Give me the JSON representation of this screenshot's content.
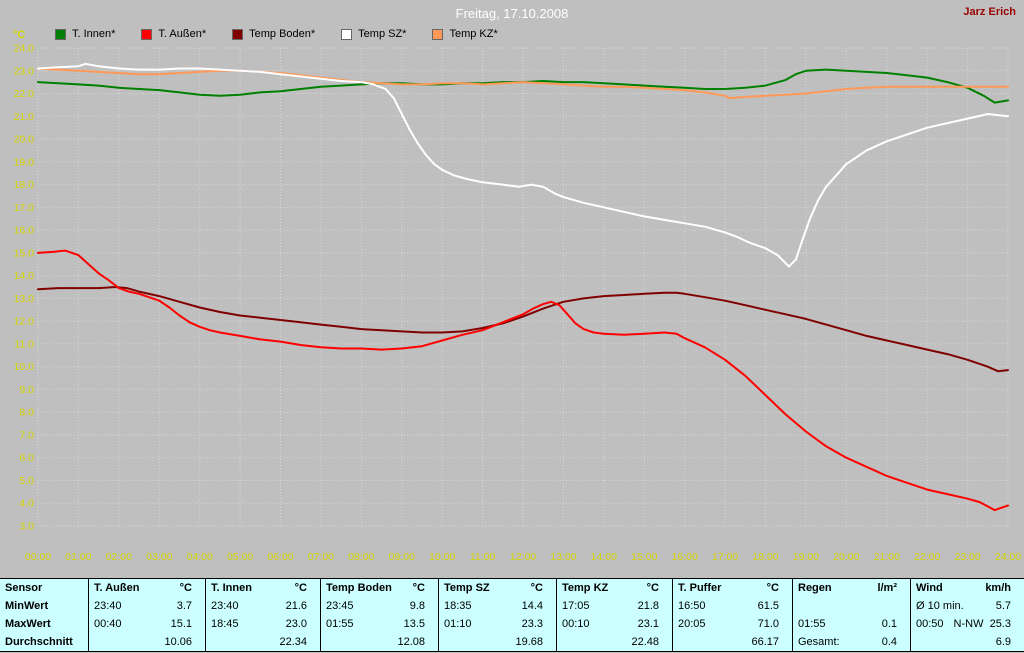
{
  "header": {
    "title": "Freitag, 17.10.2008",
    "watermark": "Jarz Erich"
  },
  "colors": {
    "background": "#bfbfbf",
    "axis_text": "#d4d400",
    "grid": "#d8d8d8",
    "title_text": "#ffffff",
    "watermark_text": "#990000",
    "table_background": "#ccffff",
    "table_border": "#000000"
  },
  "chart_data": {
    "type": "line",
    "title": "Freitag, 17.10.2008",
    "ylabel": "°C",
    "ylim": [
      3.0,
      24.0
    ],
    "y_tick_step": 1.0,
    "xlim": [
      0,
      24
    ],
    "grid": true,
    "legend_position": "top-left",
    "x_ticks": [
      "00:00",
      "01:00",
      "02:00",
      "03:00",
      "04:00",
      "05:00",
      "06:00",
      "07:00",
      "08:00",
      "09:00",
      "10:00",
      "11:00",
      "12:00",
      "13:00",
      "14:00",
      "15:00",
      "16:00",
      "17:00",
      "18:00",
      "19:00",
      "20:00",
      "21:00",
      "22:00",
      "23:00",
      "24:00"
    ],
    "series": [
      {
        "name": "T. Innen*",
        "color": "#008000",
        "points": [
          [
            0,
            22.5
          ],
          [
            1,
            22.4
          ],
          [
            1.5,
            22.35
          ],
          [
            2,
            22.25
          ],
          [
            2.5,
            22.2
          ],
          [
            3,
            22.15
          ],
          [
            3.5,
            22.05
          ],
          [
            4,
            21.95
          ],
          [
            4.5,
            21.9
          ],
          [
            5,
            21.95
          ],
          [
            5.5,
            22.05
          ],
          [
            6,
            22.1
          ],
          [
            6.5,
            22.2
          ],
          [
            7,
            22.3
          ],
          [
            7.5,
            22.35
          ],
          [
            8,
            22.4
          ],
          [
            8.5,
            22.45
          ],
          [
            9,
            22.45
          ],
          [
            9.5,
            22.4
          ],
          [
            10,
            22.4
          ],
          [
            10.5,
            22.45
          ],
          [
            11,
            22.45
          ],
          [
            11.5,
            22.5
          ],
          [
            12,
            22.5
          ],
          [
            12.5,
            22.55
          ],
          [
            13,
            22.5
          ],
          [
            13.5,
            22.5
          ],
          [
            14,
            22.45
          ],
          [
            14.5,
            22.4
          ],
          [
            15,
            22.35
          ],
          [
            15.5,
            22.3
          ],
          [
            16,
            22.25
          ],
          [
            16.5,
            22.2
          ],
          [
            17,
            22.2
          ],
          [
            17.5,
            22.25
          ],
          [
            18,
            22.35
          ],
          [
            18.5,
            22.6
          ],
          [
            18.75,
            22.85
          ],
          [
            19,
            23.0
          ],
          [
            19.5,
            23.05
          ],
          [
            20,
            23.0
          ],
          [
            20.5,
            22.95
          ],
          [
            21,
            22.9
          ],
          [
            21.5,
            22.8
          ],
          [
            22,
            22.7
          ],
          [
            22.5,
            22.5
          ],
          [
            23,
            22.25
          ],
          [
            23.4,
            21.9
          ],
          [
            23.67,
            21.6
          ],
          [
            24,
            21.7
          ]
        ]
      },
      {
        "name": "T. Außen*",
        "color": "#ff0000",
        "points": [
          [
            0,
            15.0
          ],
          [
            0.4,
            15.05
          ],
          [
            0.67,
            15.1
          ],
          [
            1,
            14.9
          ],
          [
            1.25,
            14.5
          ],
          [
            1.5,
            14.1
          ],
          [
            1.75,
            13.8
          ],
          [
            2,
            13.45
          ],
          [
            2.25,
            13.3
          ],
          [
            2.5,
            13.2
          ],
          [
            2.75,
            13.05
          ],
          [
            3,
            12.9
          ],
          [
            3.25,
            12.6
          ],
          [
            3.5,
            12.25
          ],
          [
            3.75,
            11.95
          ],
          [
            4,
            11.75
          ],
          [
            4.25,
            11.6
          ],
          [
            4.5,
            11.5
          ],
          [
            5,
            11.35
          ],
          [
            5.5,
            11.2
          ],
          [
            6,
            11.1
          ],
          [
            6.5,
            10.95
          ],
          [
            7,
            10.85
          ],
          [
            7.5,
            10.8
          ],
          [
            8,
            10.8
          ],
          [
            8.5,
            10.75
          ],
          [
            9,
            10.8
          ],
          [
            9.5,
            10.9
          ],
          [
            10,
            11.15
          ],
          [
            10.5,
            11.4
          ],
          [
            11,
            11.6
          ],
          [
            11.5,
            11.95
          ],
          [
            12,
            12.3
          ],
          [
            12.25,
            12.55
          ],
          [
            12.5,
            12.75
          ],
          [
            12.7,
            12.85
          ],
          [
            12.9,
            12.7
          ],
          [
            13.1,
            12.3
          ],
          [
            13.3,
            11.9
          ],
          [
            13.5,
            11.65
          ],
          [
            13.75,
            11.5
          ],
          [
            14,
            11.45
          ],
          [
            14.5,
            11.4
          ],
          [
            15,
            11.45
          ],
          [
            15.5,
            11.5
          ],
          [
            15.8,
            11.45
          ],
          [
            16,
            11.25
          ],
          [
            16.5,
            10.85
          ],
          [
            17,
            10.3
          ],
          [
            17.5,
            9.6
          ],
          [
            18,
            8.75
          ],
          [
            18.5,
            7.9
          ],
          [
            19,
            7.15
          ],
          [
            19.5,
            6.5
          ],
          [
            20,
            6.0
          ],
          [
            20.5,
            5.6
          ],
          [
            21,
            5.2
          ],
          [
            21.5,
            4.9
          ],
          [
            22,
            4.6
          ],
          [
            22.5,
            4.4
          ],
          [
            23,
            4.2
          ],
          [
            23.3,
            4.05
          ],
          [
            23.67,
            3.7
          ],
          [
            24,
            3.9
          ]
        ]
      },
      {
        "name": "Temp Boden*",
        "color": "#800000",
        "points": [
          [
            0,
            13.4
          ],
          [
            0.5,
            13.45
          ],
          [
            1,
            13.45
          ],
          [
            1.5,
            13.45
          ],
          [
            1.92,
            13.5
          ],
          [
            2.2,
            13.45
          ],
          [
            2.5,
            13.3
          ],
          [
            3,
            13.1
          ],
          [
            3.5,
            12.85
          ],
          [
            4,
            12.6
          ],
          [
            4.5,
            12.4
          ],
          [
            5,
            12.25
          ],
          [
            5.5,
            12.15
          ],
          [
            6,
            12.05
          ],
          [
            6.5,
            11.95
          ],
          [
            7,
            11.85
          ],
          [
            7.5,
            11.75
          ],
          [
            8,
            11.65
          ],
          [
            8.5,
            11.6
          ],
          [
            9,
            11.55
          ],
          [
            9.5,
            11.5
          ],
          [
            10,
            11.5
          ],
          [
            10.5,
            11.55
          ],
          [
            11,
            11.7
          ],
          [
            11.5,
            11.9
          ],
          [
            12,
            12.2
          ],
          [
            12.5,
            12.55
          ],
          [
            13,
            12.85
          ],
          [
            13.5,
            13.0
          ],
          [
            14,
            13.1
          ],
          [
            14.5,
            13.15
          ],
          [
            15,
            13.2
          ],
          [
            15.5,
            13.25
          ],
          [
            15.8,
            13.25
          ],
          [
            16,
            13.2
          ],
          [
            16.5,
            13.05
          ],
          [
            17,
            12.9
          ],
          [
            17.5,
            12.7
          ],
          [
            18,
            12.5
          ],
          [
            18.5,
            12.3
          ],
          [
            19,
            12.1
          ],
          [
            19.5,
            11.85
          ],
          [
            20,
            11.6
          ],
          [
            20.5,
            11.35
          ],
          [
            21,
            11.15
          ],
          [
            21.5,
            10.95
          ],
          [
            22,
            10.75
          ],
          [
            22.5,
            10.55
          ],
          [
            23,
            10.3
          ],
          [
            23.5,
            10.0
          ],
          [
            23.75,
            9.8
          ],
          [
            24,
            9.85
          ]
        ]
      },
      {
        "name": "Temp SZ*",
        "color": "#ffffff",
        "points": [
          [
            0,
            23.1
          ],
          [
            0.5,
            23.15
          ],
          [
            1,
            23.2
          ],
          [
            1.17,
            23.3
          ],
          [
            1.5,
            23.2
          ],
          [
            2,
            23.1
          ],
          [
            2.5,
            23.05
          ],
          [
            3,
            23.05
          ],
          [
            3.5,
            23.1
          ],
          [
            4,
            23.1
          ],
          [
            4.5,
            23.05
          ],
          [
            5,
            23.0
          ],
          [
            5.5,
            22.95
          ],
          [
            6,
            22.85
          ],
          [
            6.5,
            22.75
          ],
          [
            7,
            22.65
          ],
          [
            7.5,
            22.55
          ],
          [
            8,
            22.5
          ],
          [
            8.3,
            22.4
          ],
          [
            8.6,
            22.2
          ],
          [
            8.8,
            21.8
          ],
          [
            9,
            21.1
          ],
          [
            9.2,
            20.4
          ],
          [
            9.4,
            19.8
          ],
          [
            9.6,
            19.3
          ],
          [
            9.8,
            18.9
          ],
          [
            10,
            18.65
          ],
          [
            10.3,
            18.4
          ],
          [
            10.6,
            18.25
          ],
          [
            11,
            18.1
          ],
          [
            11.5,
            18.0
          ],
          [
            11.9,
            17.9
          ],
          [
            12.2,
            18.0
          ],
          [
            12.5,
            17.9
          ],
          [
            12.8,
            17.6
          ],
          [
            13,
            17.45
          ],
          [
            13.5,
            17.2
          ],
          [
            14,
            17.0
          ],
          [
            14.5,
            16.8
          ],
          [
            15,
            16.6
          ],
          [
            15.5,
            16.45
          ],
          [
            16,
            16.3
          ],
          [
            16.5,
            16.15
          ],
          [
            17,
            15.9
          ],
          [
            17.3,
            15.7
          ],
          [
            17.6,
            15.45
          ],
          [
            18,
            15.2
          ],
          [
            18.3,
            14.9
          ],
          [
            18.58,
            14.4
          ],
          [
            18.75,
            14.7
          ],
          [
            18.9,
            15.5
          ],
          [
            19.1,
            16.5
          ],
          [
            19.3,
            17.3
          ],
          [
            19.5,
            17.9
          ],
          [
            19.75,
            18.4
          ],
          [
            20,
            18.9
          ],
          [
            20.25,
            19.2
          ],
          [
            20.5,
            19.5
          ],
          [
            21,
            19.9
          ],
          [
            21.5,
            20.2
          ],
          [
            22,
            20.5
          ],
          [
            22.5,
            20.7
          ],
          [
            23,
            20.9
          ],
          [
            23.5,
            21.1
          ],
          [
            24,
            21.0
          ]
        ]
      },
      {
        "name": "Temp KZ*",
        "color": "#ff9955",
        "points": [
          [
            0,
            23.1
          ],
          [
            0.5,
            23.05
          ],
          [
            1,
            23.0
          ],
          [
            1.5,
            22.95
          ],
          [
            2,
            22.9
          ],
          [
            2.5,
            22.85
          ],
          [
            3,
            22.85
          ],
          [
            3.5,
            22.9
          ],
          [
            4,
            22.95
          ],
          [
            4.5,
            23.0
          ],
          [
            5,
            23.0
          ],
          [
            5.5,
            22.95
          ],
          [
            6,
            22.9
          ],
          [
            6.5,
            22.8
          ],
          [
            7,
            22.7
          ],
          [
            7.5,
            22.6
          ],
          [
            8,
            22.5
          ],
          [
            8.5,
            22.45
          ],
          [
            9,
            22.4
          ],
          [
            9.5,
            22.4
          ],
          [
            10,
            22.45
          ],
          [
            10.5,
            22.45
          ],
          [
            11,
            22.4
          ],
          [
            11.5,
            22.45
          ],
          [
            12,
            22.5
          ],
          [
            12.5,
            22.45
          ],
          [
            13,
            22.4
          ],
          [
            13.5,
            22.35
          ],
          [
            14,
            22.3
          ],
          [
            14.5,
            22.3
          ],
          [
            15,
            22.25
          ],
          [
            15.5,
            22.2
          ],
          [
            16,
            22.15
          ],
          [
            16.5,
            22.05
          ],
          [
            17,
            21.9
          ],
          [
            17.1,
            21.8
          ],
          [
            17.5,
            21.85
          ],
          [
            18,
            21.9
          ],
          [
            18.5,
            21.95
          ],
          [
            19,
            22.0
          ],
          [
            19.5,
            22.1
          ],
          [
            20,
            22.2
          ],
          [
            20.5,
            22.25
          ],
          [
            21,
            22.3
          ],
          [
            21.5,
            22.3
          ],
          [
            22,
            22.3
          ],
          [
            22.5,
            22.3
          ],
          [
            23,
            22.3
          ],
          [
            23.5,
            22.3
          ],
          [
            24,
            22.3
          ]
        ]
      }
    ]
  },
  "table": {
    "row_labels": [
      "Sensor",
      "MinWert",
      "MaxWert",
      "Durchschnitt"
    ],
    "columns": [
      {
        "name": "T. Außen",
        "unit": "°C",
        "min_time": "23:40",
        "min": "3.7",
        "max_time": "00:40",
        "max": "15.1",
        "avg": "10.06"
      },
      {
        "name": "T. Innen",
        "unit": "°C",
        "min_time": "23:40",
        "min": "21.6",
        "max_time": "18:45",
        "max": "23.0",
        "avg": "22.34"
      },
      {
        "name": "Temp Boden",
        "unit": "°C",
        "min_time": "23:45",
        "min": "9.8",
        "max_time": "01:55",
        "max": "13.5",
        "avg": "12.08"
      },
      {
        "name": "Temp SZ",
        "unit": "°C",
        "min_time": "18:35",
        "min": "14.4",
        "max_time": "01:10",
        "max": "23.3",
        "avg": "19.68"
      },
      {
        "name": "Temp KZ",
        "unit": "°C",
        "min_time": "17:05",
        "min": "21.8",
        "max_time": "00:10",
        "max": "23.1",
        "avg": "22.48"
      },
      {
        "name": "T. Puffer",
        "unit": "°C",
        "min_time": "16:50",
        "min": "61.5",
        "max_time": "20:05",
        "max": "71.0",
        "avg": "66.17"
      },
      {
        "name": "Regen",
        "unit": "l/m²",
        "min_time": "",
        "min": "",
        "max_time": "01:55",
        "max": "0.1",
        "avg_label": "Gesamt:",
        "avg": "0.4"
      },
      {
        "name": "Wind",
        "unit": "km/h",
        "min_time": "Ø 10 min.",
        "min": "5.7",
        "max_time": "00:50",
        "max_extra": "N-NW",
        "max": "25.3",
        "avg": "6.9"
      }
    ]
  }
}
